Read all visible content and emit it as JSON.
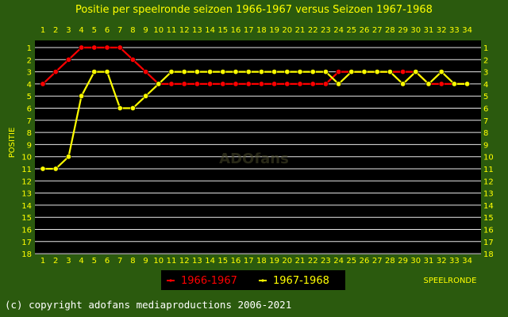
{
  "chart_data": {
    "type": "line",
    "title": "Positie per speelronde seizoen 1966-1967 versus Seizoen 1967-1968",
    "xlabel": "SPEELRONDE",
    "ylabel": "POSITIE",
    "x": [
      1,
      2,
      3,
      4,
      5,
      6,
      7,
      8,
      9,
      10,
      11,
      12,
      13,
      14,
      15,
      16,
      17,
      18,
      19,
      20,
      21,
      22,
      23,
      24,
      25,
      26,
      27,
      28,
      29,
      30,
      31,
      32,
      33,
      34
    ],
    "xlim": [
      1,
      34
    ],
    "ylim": [
      1,
      18
    ],
    "y_inverted": true,
    "yticks": [
      1,
      2,
      3,
      4,
      5,
      6,
      7,
      8,
      9,
      10,
      11,
      12,
      13,
      14,
      15,
      16,
      17,
      18
    ],
    "grid": true,
    "legend_position": "bottom-left",
    "series": [
      {
        "name": "1966-1967",
        "color": "#ff0000",
        "values": [
          4,
          3,
          2,
          1,
          1,
          1,
          1,
          2,
          3,
          4,
          4,
          4,
          4,
          4,
          4,
          4,
          4,
          4,
          4,
          4,
          4,
          4,
          4,
          3,
          3,
          3,
          3,
          3,
          3,
          3,
          4,
          4,
          4,
          4
        ]
      },
      {
        "name": "1967-1968",
        "color": "#ffff00",
        "values": [
          11,
          11,
          10,
          5,
          3,
          3,
          6,
          6,
          5,
          4,
          3,
          3,
          3,
          3,
          3,
          3,
          3,
          3,
          3,
          3,
          3,
          3,
          3,
          4,
          3,
          3,
          3,
          3,
          4,
          3,
          4,
          3,
          4,
          4
        ]
      }
    ],
    "watermark": "ADOfans",
    "footer": "(c) copyright adofans mediaproductions 2006-2021"
  }
}
